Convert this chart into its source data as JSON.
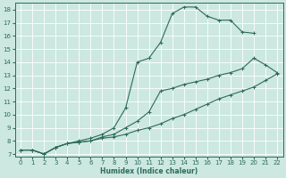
{
  "xlabel": "Humidex (Indice chaleur)",
  "xlim": [
    -0.5,
    22.5
  ],
  "ylim": [
    6.8,
    18.5
  ],
  "xticks": [
    0,
    1,
    2,
    3,
    4,
    5,
    6,
    7,
    8,
    9,
    10,
    11,
    12,
    13,
    14,
    15,
    16,
    17,
    18,
    19,
    20,
    21,
    22
  ],
  "yticks": [
    7,
    8,
    9,
    10,
    11,
    12,
    13,
    14,
    15,
    16,
    17,
    18
  ],
  "bg_color": "#cce8e0",
  "line_color": "#2d6b5a",
  "lines": [
    {
      "x": [
        0,
        1,
        2,
        3,
        4,
        5,
        6,
        7,
        8,
        9,
        10,
        11,
        12,
        13,
        14,
        15,
        16,
        17,
        18,
        19,
        20
      ],
      "y": [
        7.3,
        7.3,
        7.0,
        7.5,
        7.8,
        8.0,
        8.2,
        8.5,
        9.0,
        10.5,
        14.0,
        14.3,
        15.5,
        17.7,
        18.2,
        18.2,
        17.5,
        17.2,
        17.2,
        16.3,
        16.2
      ]
    },
    {
      "x": [
        0,
        1,
        2,
        3,
        4,
        5,
        6,
        7,
        8,
        9,
        10,
        11,
        12,
        13,
        14,
        15,
        16,
        17,
        18,
        19,
        20,
        21,
        22
      ],
      "y": [
        7.3,
        7.3,
        7.0,
        7.5,
        7.8,
        7.9,
        8.0,
        8.3,
        8.5,
        9.0,
        9.5,
        10.2,
        11.8,
        12.0,
        12.3,
        12.5,
        12.7,
        13.0,
        13.2,
        13.5,
        14.3,
        13.8,
        13.2
      ]
    },
    {
      "x": [
        0,
        1,
        2,
        3,
        4,
        5,
        6,
        7,
        8,
        9,
        10,
        11,
        12,
        13,
        14,
        15,
        16,
        17,
        18,
        19,
        20,
        21,
        22
      ],
      "y": [
        7.3,
        7.3,
        7.0,
        7.5,
        7.8,
        7.9,
        8.0,
        8.2,
        8.3,
        8.5,
        8.8,
        9.0,
        9.3,
        9.7,
        10.0,
        10.4,
        10.8,
        11.2,
        11.5,
        11.8,
        12.1,
        12.6,
        13.1
      ]
    }
  ]
}
